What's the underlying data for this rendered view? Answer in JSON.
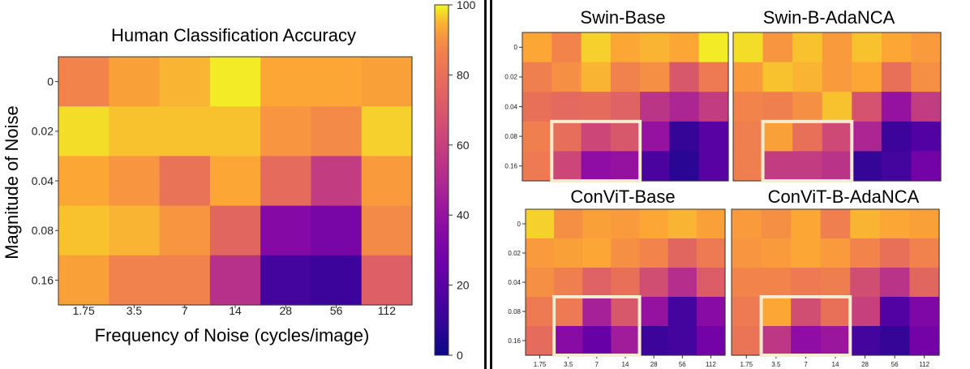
{
  "chart_data": [
    {
      "id": "human",
      "type": "heatmap",
      "title": "Human Classification Accuracy",
      "xlabel": "Frequency of Noise (cycles/image)",
      "ylabel": "Magnitude of Noise",
      "x_ticks": [
        "1.75",
        "3.5",
        "7",
        "14",
        "28",
        "56",
        "112"
      ],
      "y_ticks": [
        "0",
        "0.02",
        "0.04",
        "0.08",
        "0.16"
      ],
      "values": [
        [
          88,
          93,
          95,
          99,
          94,
          94,
          93
        ],
        [
          98,
          96,
          96,
          96,
          91,
          89,
          97
        ],
        [
          94,
          91,
          81,
          94,
          78,
          58,
          92
        ],
        [
          96,
          95,
          91,
          76,
          34,
          30,
          89
        ],
        [
          93,
          87,
          87,
          53,
          14,
          12,
          73
        ]
      ]
    },
    {
      "id": "swin-base",
      "type": "heatmap",
      "title": "Swin-Base",
      "y_ticks": [
        "0",
        "0.02",
        "0.04",
        "0.08",
        "0.16"
      ],
      "values": [
        [
          94,
          88,
          97,
          94,
          95,
          94,
          99
        ],
        [
          86,
          90,
          95,
          87,
          90,
          70,
          84
        ],
        [
          80,
          77,
          78,
          74,
          55,
          48,
          58
        ],
        [
          86,
          79,
          63,
          70,
          40,
          10,
          20
        ],
        [
          84,
          63,
          38,
          40,
          16,
          7,
          20
        ]
      ],
      "highlight": {
        "cols": [
          1,
          3
        ],
        "rows": [
          3,
          4
        ]
      }
    },
    {
      "id": "swin-b-adanca",
      "type": "heatmap",
      "title": "Swin-B-AdaNCA",
      "y_ticks": [],
      "values": [
        [
          98,
          91,
          96,
          92,
          96,
          94,
          92
        ],
        [
          92,
          96,
          95,
          92,
          94,
          80,
          90
        ],
        [
          88,
          86,
          90,
          96,
          68,
          40,
          58
        ],
        [
          86,
          93,
          80,
          64,
          48,
          12,
          18
        ],
        [
          86,
          58,
          58,
          54,
          10,
          14,
          28
        ]
      ],
      "highlight": {
        "cols": [
          1,
          3
        ],
        "rows": [
          3,
          4
        ]
      }
    },
    {
      "id": "convit-base",
      "type": "heatmap",
      "title": "ConViT-Base",
      "y_ticks": [
        "0",
        "0.02",
        "0.04",
        "0.08",
        "0.16"
      ],
      "values": [
        [
          97,
          90,
          93,
          92,
          94,
          95,
          93
        ],
        [
          92,
          93,
          94,
          90,
          88,
          76,
          84
        ],
        [
          90,
          86,
          74,
          80,
          66,
          52,
          72
        ],
        [
          84,
          84,
          46,
          70,
          40,
          14,
          36
        ],
        [
          78,
          36,
          24,
          44,
          12,
          14,
          28
        ]
      ],
      "x_ticks": [
        "1.75",
        "3.5",
        "7",
        "14",
        "28",
        "56",
        "112"
      ],
      "highlight": {
        "cols": [
          1,
          3
        ],
        "rows": [
          3,
          4
        ]
      }
    },
    {
      "id": "convit-b-adanca",
      "type": "heatmap",
      "title": "ConViT-B-AdaNCA",
      "y_ticks": [],
      "values": [
        [
          92,
          90,
          94,
          86,
          95,
          94,
          93
        ],
        [
          91,
          92,
          94,
          92,
          88,
          80,
          87
        ],
        [
          88,
          88,
          84,
          85,
          66,
          54,
          76
        ],
        [
          84,
          94,
          66,
          80,
          60,
          18,
          32
        ],
        [
          82,
          56,
          38,
          42,
          14,
          10,
          28
        ]
      ],
      "x_ticks": [
        "1.75",
        "3.5",
        "7",
        "14",
        "28",
        "56",
        "112"
      ],
      "highlight": {
        "cols": [
          1,
          3
        ],
        "rows": [
          3,
          4
        ]
      }
    }
  ],
  "colorbar": {
    "min": 0,
    "max": 100,
    "ticks": [
      "0",
      "20",
      "40",
      "60",
      "80",
      "100"
    ],
    "tick_values": [
      0,
      20,
      40,
      60,
      80,
      100
    ],
    "colormap": "plasma"
  },
  "colors": {
    "highlight": "#f7ecd0",
    "divider": "#111111"
  }
}
